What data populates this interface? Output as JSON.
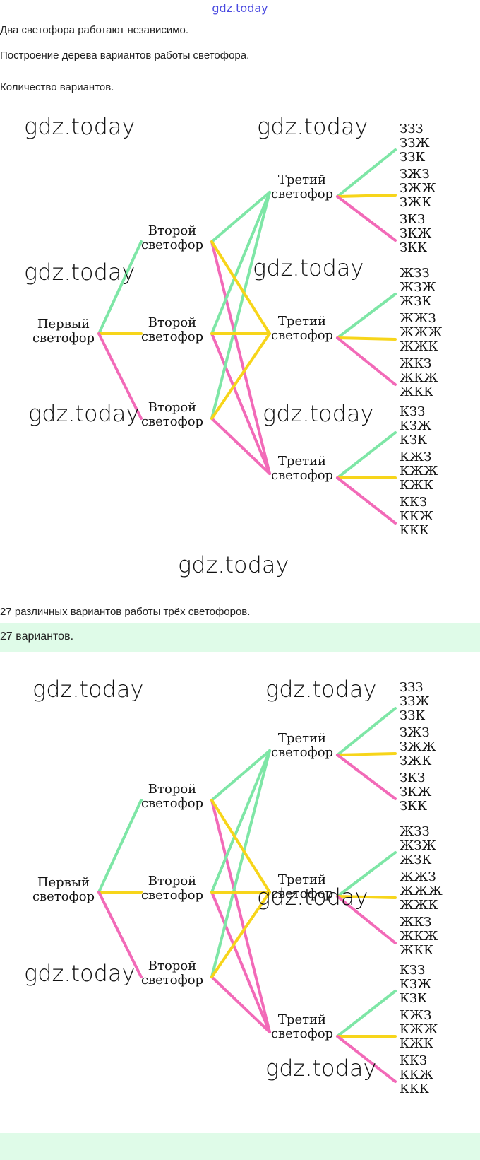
{
  "site_mark": "gdz.today",
  "paragraphs": {
    "p1": "Два светофора работают независимо.",
    "p2": "Построение дерева вариантов работы светофора.",
    "p3": "Количество вариантов.",
    "p4": "27 различных вариантов работы трёх светофоров."
  },
  "answer": "27 вариантов.",
  "tree": {
    "first": [
      "Первый",
      "светофор"
    ],
    "second": [
      "Второй",
      "светофор"
    ],
    "third": [
      "Третий",
      "светофор"
    ],
    "leaves": [
      "ЗЗЗ",
      "ЗЗЖ",
      "ЗЗК",
      "ЗЖЗ",
      "ЗЖЖ",
      "ЗЖК",
      "ЗКЗ",
      "ЗКЖ",
      "ЗКК",
      "ЖЗЗ",
      "ЖЗЖ",
      "ЖЗК",
      "ЖЖЗ",
      "ЖЖЖ",
      "ЖЖК",
      "ЖКЗ",
      "ЖКЖ",
      "ЖКК",
      "КЗЗ",
      "КЗЖ",
      "КЗК",
      "КЖЗ",
      "КЖЖ",
      "КЖК",
      "ККЗ",
      "ККЖ",
      "ККК"
    ]
  },
  "colors": {
    "green": "#7ee6a6",
    "yellow": "#f7d51a",
    "pink": "#f26ab8"
  },
  "watermark": "gdz.today"
}
